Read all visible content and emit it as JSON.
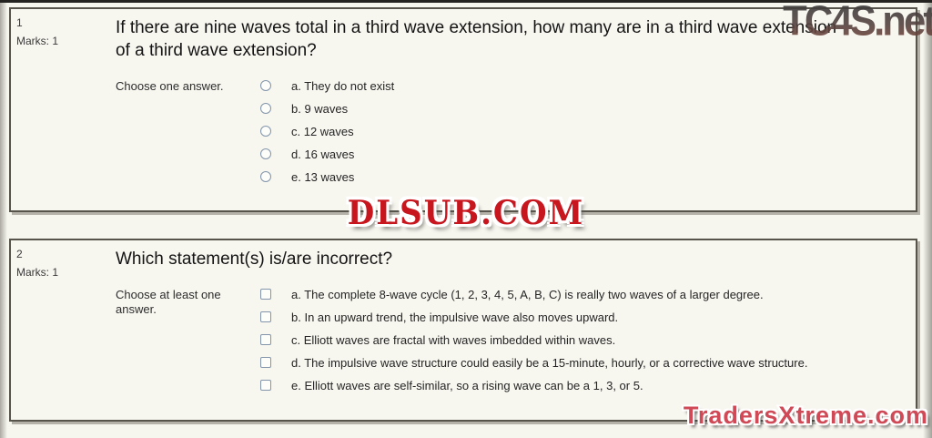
{
  "watermarks": {
    "top_right": "TC4S.net",
    "center": "DLSUB.COM",
    "bottom_right": "TradersXtreme.com"
  },
  "colors": {
    "page_background": "#f6f5ee",
    "box_border": "#57544b",
    "control_border": "#8295ab",
    "watermark_red": "#c8161e",
    "watermark_pink": "#cf4a56"
  },
  "questions": [
    {
      "number": "1",
      "marks_label": "Marks: 1",
      "text": "If there are nine waves total in a third wave extension, how many are in a third wave extension of a third wave extension?",
      "prompt": "Choose one answer.",
      "type": "radio",
      "options": [
        "a. They do not exist",
        "b. 9 waves",
        "c. 12 waves",
        "d. 16 waves",
        "e. 13 waves"
      ]
    },
    {
      "number": "2",
      "marks_label": "Marks: 1",
      "text": "Which statement(s) is/are incorrect?",
      "prompt": "Choose at least one answer.",
      "type": "checkbox",
      "options": [
        "a. The complete 8-wave cycle (1, 2, 3, 4, 5, A, B, C) is really two waves of a larger degree.",
        "b. In an upward trend, the impulsive wave also moves upward.",
        "c. Elliott waves are fractal with waves imbedded within waves.",
        "d. The impulsive wave structure could easily be a 15-minute, hourly, or a corrective wave structure.",
        "e. Elliott waves are self-similar, so a rising wave can be a 1, 3, or 5."
      ]
    }
  ]
}
